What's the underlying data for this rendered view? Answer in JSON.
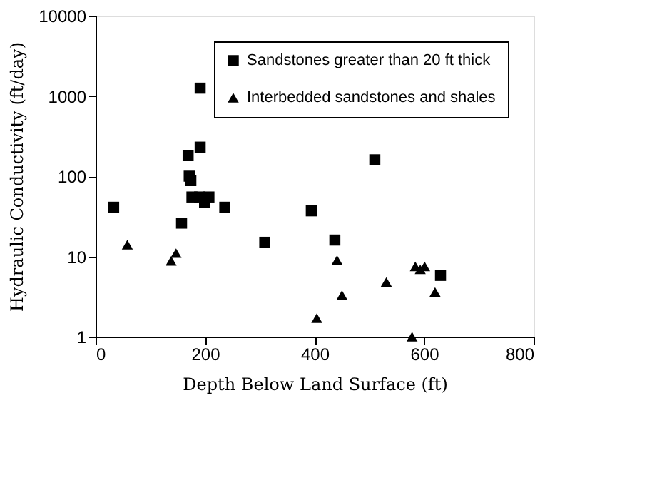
{
  "chart_data": {
    "type": "scatter",
    "xlabel": "Depth Below Land Surface (ft)",
    "ylabel": "Hydraulic Conductivity (ft/day)",
    "xlim": [
      0,
      800
    ],
    "xticks": [
      0,
      200,
      400,
      600,
      800
    ],
    "ylim": [
      1,
      10000
    ],
    "yticks": [
      1,
      10,
      100,
      1000,
      10000
    ],
    "log": true,
    "grid": false,
    "legend": "top right",
    "series": [
      {
        "name": "Sandstones greater than 20 ft thick",
        "color": "#000000",
        "marker": "square",
        "x": [
          33,
          191,
          191,
          169,
          171,
          174,
          176,
          190,
          207,
          199,
          157,
          236,
          309,
          394,
          437,
          510,
          630
        ],
        "values": [
          41,
          1250,
          230,
          180,
          100,
          88,
          55,
          55,
          55,
          47,
          26,
          41,
          15,
          37,
          16,
          160,
          5.8
        ]
      },
      {
        "name": "Interbedded sandstones and shales",
        "color": "#000000",
        "marker": "triangle",
        "x": [
          58,
          147,
          138,
          404,
          441,
          450,
          578,
          531,
          584,
          601,
          593,
          620
        ],
        "values": [
          14,
          11,
          8.8,
          1.7,
          9,
          3.3,
          1.0,
          4.8,
          7.5,
          7.5,
          6.9,
          3.6
        ]
      }
    ]
  }
}
